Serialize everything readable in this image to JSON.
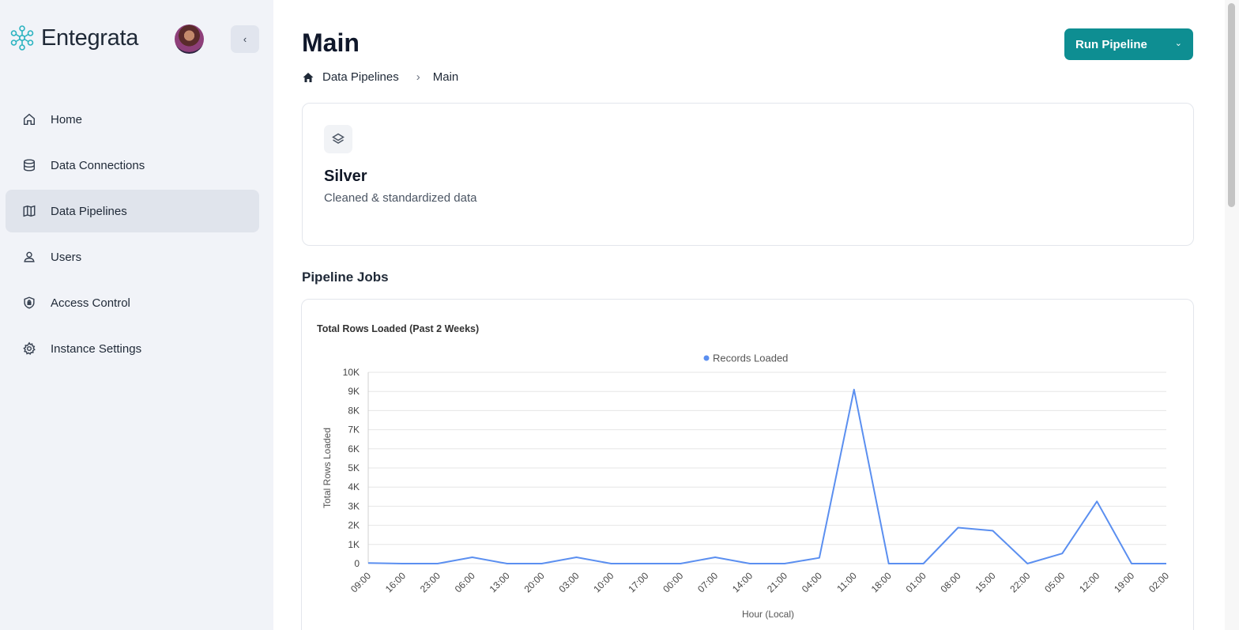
{
  "sidebar": {
    "brand": "Entegrata",
    "collapse_glyph": "‹",
    "items": [
      {
        "label": "Home",
        "icon": "home-icon"
      },
      {
        "label": "Data Connections",
        "icon": "database-icon"
      },
      {
        "label": "Data Pipelines",
        "icon": "map-icon",
        "active": true
      },
      {
        "label": "Users",
        "icon": "user-icon"
      },
      {
        "label": "Access Control",
        "icon": "shield-icon"
      },
      {
        "label": "Instance Settings",
        "icon": "gear-icon"
      }
    ]
  },
  "header": {
    "title": "Main",
    "breadcrumb": [
      "Data Pipelines",
      "Main"
    ],
    "run_button": "Run Pipeline"
  },
  "layer": {
    "title": "Silver",
    "subtitle": "Cleaned & standardized data"
  },
  "section": {
    "title": "Pipeline Jobs"
  },
  "colors": {
    "accent": "#0e8e92",
    "series": "#5b8ff0",
    "sidebar_bg": "#f1f3f8"
  },
  "chart_data": {
    "type": "line",
    "title": "Total Rows Loaded (Past 2 Weeks)",
    "xlabel": "Hour (Local)",
    "ylabel": "Total Rows Loaded",
    "legend_position": "top-center",
    "ylim": [
      0,
      10000
    ],
    "yticks": [
      "0",
      "1K",
      "2K",
      "3K",
      "4K",
      "5K",
      "6K",
      "7K",
      "8K",
      "9K",
      "10K"
    ],
    "categories": [
      "09:00",
      "16:00",
      "23:00",
      "06:00",
      "13:00",
      "20:00",
      "03:00",
      "10:00",
      "17:00",
      "00:00",
      "07:00",
      "14:00",
      "21:00",
      "04:00",
      "11:00",
      "18:00",
      "01:00",
      "08:00",
      "15:00",
      "22:00",
      "05:00",
      "12:00",
      "19:00",
      "02:00"
    ],
    "series": [
      {
        "name": "Records Loaded",
        "values": [
          30,
          0,
          0,
          330,
          0,
          0,
          330,
          0,
          0,
          0,
          330,
          0,
          0,
          300,
          9100,
          0,
          0,
          1880,
          1720,
          0,
          530,
          3250,
          0,
          0
        ]
      }
    ]
  }
}
